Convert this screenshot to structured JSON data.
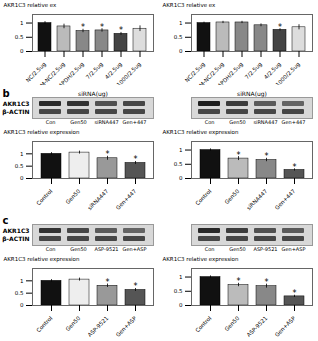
{
  "chart_data": [
    {
      "type": "bar",
      "categories": [
        "NC/2.5ug",
        "FAM-NC/2.5ug",
        "GAPDH/2.5ug",
        "7/2.5ug",
        "4/2.5ug",
        "1000/2.5ug"
      ],
      "values": [
        1.0,
        0.88,
        0.72,
        0.74,
        0.62,
        0.8
      ],
      "errors": [
        0.05,
        0.08,
        0.06,
        0.06,
        0.05,
        0.1
      ],
      "colors": [
        "#111111",
        "#bbbbbb",
        "#888888",
        "#888888",
        "#444444",
        "#dddddd"
      ],
      "ylabel": "AKR1C3 relative ex",
      "ylim": [
        0.0,
        1.3
      ],
      "yticks": [
        0,
        0.5,
        1
      ],
      "significant": [
        false,
        false,
        true,
        true,
        true,
        false
      ],
      "significance_mark": "*"
    },
    {
      "type": "bar",
      "categories": [
        "NC/2.5ug",
        "FAM-NC/2.5ug",
        "GAPDH/2.5ug",
        "7/2.5ug",
        "4/2.5ug",
        "1000/2.5ug"
      ],
      "values": [
        1.0,
        1.02,
        1.02,
        0.92,
        0.76,
        0.85
      ],
      "errors": [
        0.03,
        0.04,
        0.04,
        0.05,
        0.04,
        0.09
      ],
      "colors": [
        "#111111",
        "#bbbbbb",
        "#888888",
        "#888888",
        "#444444",
        "#dddddd"
      ],
      "ylabel": "AKR1C3 relative ex",
      "ylim": [
        0.0,
        1.3
      ],
      "yticks": [
        0,
        0.5,
        1
      ],
      "significant": [
        false,
        false,
        false,
        false,
        true,
        false
      ],
      "significance_mark": "*"
    },
    {
      "type": "blot",
      "title": "siRNA(ug)",
      "annotations": [
        "b"
      ],
      "categories": [
        "Con",
        "Gen50",
        "siRNA447",
        "Gen+447"
      ],
      "series": [
        {
          "name": "AKR1C3",
          "values": [
            0.9,
            0.85,
            0.7,
            0.75
          ]
        },
        {
          "name": "β-ACTIN",
          "values": [
            0.75,
            0.75,
            0.75,
            0.75
          ]
        }
      ]
    },
    {
      "type": "blot",
      "title": "siRNA(ug)",
      "categories": [
        "Con",
        "Gen50",
        "siRNA447",
        "Gen+447"
      ],
      "series": [
        {
          "values": [
            0.95,
            0.8,
            0.65,
            0.6
          ]
        },
        {
          "values": [
            0.75,
            0.75,
            0.75,
            0.75
          ]
        }
      ]
    },
    {
      "type": "bar",
      "categories": [
        "Control",
        "Gen50",
        "siRNA447",
        "Gen+447"
      ],
      "values": [
        1.0,
        1.05,
        0.82,
        0.63
      ],
      "errors": [
        0.05,
        0.06,
        0.08,
        0.06
      ],
      "colors": [
        "#111111",
        "#eeeeee",
        "#999999",
        "#555555"
      ],
      "ylabel": "AKR1C3 relative expression",
      "ylim": [
        0.0,
        1.5
      ],
      "yticks": [
        0,
        0.5,
        1
      ],
      "significant": [
        false,
        false,
        true,
        true
      ],
      "significance_mark": "*"
    },
    {
      "type": "bar",
      "categories": [
        "Control",
        "Gen50",
        "siRNA447",
        "Gen+447"
      ],
      "values": [
        1.0,
        0.7,
        0.65,
        0.3
      ],
      "errors": [
        0.04,
        0.07,
        0.06,
        0.04
      ],
      "colors": [
        "#111111",
        "#bbbbbb",
        "#888888",
        "#555555"
      ],
      "ylabel": "AKR1C3 relative expression",
      "ylim": [
        0.0,
        1.3
      ],
      "yticks": [
        0,
        0.5,
        1
      ],
      "significant": [
        false,
        true,
        true,
        true
      ],
      "significance_mark": "*"
    },
    {
      "type": "blot",
      "annotations": [
        "c"
      ],
      "categories": [
        "Con",
        "Gen50",
        "ASP-9521",
        "Gen+ASP"
      ],
      "series": [
        {
          "name": "AKR1C3",
          "values": [
            0.85,
            0.75,
            0.65,
            0.6
          ]
        },
        {
          "name": "β-ACTIN",
          "values": [
            0.75,
            0.75,
            0.75,
            0.75
          ]
        }
      ]
    },
    {
      "type": "blot",
      "categories": [
        "Con",
        "Gen50",
        "ASP-9521",
        "Gen+ASP"
      ],
      "series": [
        {
          "values": [
            0.9,
            0.8,
            0.7,
            0.65
          ]
        },
        {
          "values": [
            0.75,
            0.75,
            0.75,
            0.75
          ]
        }
      ]
    },
    {
      "type": "bar",
      "categories": [
        "Control",
        "Gen50",
        "ASP-9521",
        "Gen+ASP"
      ],
      "values": [
        1.0,
        1.05,
        0.8,
        0.63
      ],
      "errors": [
        0.05,
        0.06,
        0.07,
        0.06
      ],
      "colors": [
        "#111111",
        "#eeeeee",
        "#999999",
        "#555555"
      ],
      "ylabel": "AKR1C3 relative expression",
      "ylim": [
        0.0,
        1.5
      ],
      "yticks": [
        0,
        0.5,
        1
      ],
      "significant": [
        false,
        false,
        true,
        true
      ],
      "significance_mark": "*"
    },
    {
      "type": "bar",
      "categories": [
        "Control",
        "Gen50",
        "ASP-9521",
        "Gen+ASP"
      ],
      "values": [
        1.0,
        0.72,
        0.68,
        0.32
      ],
      "errors": [
        0.04,
        0.06,
        0.07,
        0.04
      ],
      "colors": [
        "#111111",
        "#bbbbbb",
        "#888888",
        "#555555"
      ],
      "ylabel": "AKR1C3 relative expression",
      "ylim": [
        0.0,
        1.3
      ],
      "yticks": [
        0,
        0.5,
        1
      ],
      "significant": [
        false,
        true,
        true,
        true
      ],
      "significance_mark": "*"
    }
  ]
}
